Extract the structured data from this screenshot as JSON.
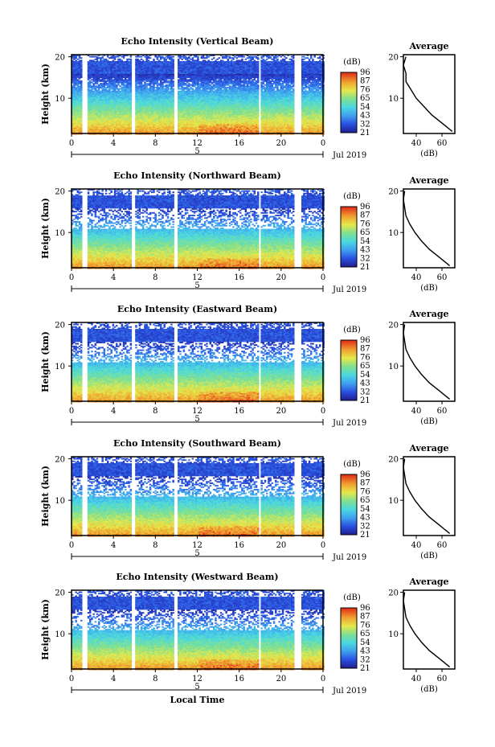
{
  "figure": {
    "x_axis_label": "Local Time",
    "colorbar_unit": "(dB)",
    "colorbar_ticks": [
      "96",
      "87",
      "76",
      "65",
      "54",
      "43",
      "32",
      "21"
    ],
    "side_title": "Average",
    "side_xlabel": "(dB)",
    "y_axis_label": "Height (km)",
    "date_label": "Jul 2019",
    "day_marker": "5"
  },
  "chart_data": [
    {
      "type": "heatmap",
      "title": "Echo Intensity (Vertical Beam)",
      "ylabel": "Height (km)",
      "xlabel": "",
      "x_ticks": [
        "0",
        "4",
        "8",
        "12",
        "16",
        "20",
        "0"
      ],
      "y_ticks": [
        "20",
        "10"
      ],
      "xlim": [
        0,
        24
      ],
      "ylim": [
        1.5,
        20.5
      ],
      "colorbar": {
        "unit": "(dB)",
        "ticks": [
          96,
          87,
          76,
          65,
          54,
          43,
          32,
          21
        ]
      },
      "gaps_hours": [
        [
          1.0,
          1.5
        ],
        [
          5.6,
          6.0
        ],
        [
          9.7,
          10.0
        ],
        [
          17.8,
          18.0
        ],
        [
          21.2,
          21.8
        ]
      ],
      "profile": {
        "title": "Average",
        "xlabel": "(dB)",
        "x_ticks": [
          "40",
          "60"
        ],
        "y_ticks": [
          "20",
          "10"
        ],
        "xlim": [
          30,
          70
        ],
        "height_km": [
          2,
          4,
          6,
          8,
          10,
          12,
          14,
          16,
          18,
          20
        ],
        "db": [
          68,
          60,
          52,
          46,
          40,
          36,
          32,
          32,
          30,
          32
        ]
      }
    },
    {
      "type": "heatmap",
      "title": "Echo Intensity (Northward Beam)",
      "ylabel": "Height (km)",
      "xlabel": "",
      "x_ticks": [
        "0",
        "4",
        "8",
        "12",
        "16",
        "20",
        "0"
      ],
      "y_ticks": [
        "20",
        "10"
      ],
      "xlim": [
        0,
        24
      ],
      "ylim": [
        1.5,
        20.5
      ],
      "colorbar": {
        "unit": "(dB)",
        "ticks": [
          96,
          87,
          76,
          65,
          54,
          43,
          32,
          21
        ]
      },
      "gaps_hours": [
        [
          1.0,
          1.5
        ],
        [
          5.6,
          6.0
        ],
        [
          9.7,
          10.0
        ],
        [
          17.8,
          18.0
        ],
        [
          21.2,
          21.8
        ]
      ],
      "profile": {
        "title": "Average",
        "xlabel": "(dB)",
        "x_ticks": [
          "40",
          "60"
        ],
        "y_ticks": [
          "20",
          "10"
        ],
        "xlim": [
          30,
          70
        ],
        "height_km": [
          2,
          4,
          6,
          8,
          10,
          12,
          14,
          16,
          18,
          20
        ],
        "db": [
          66,
          58,
          50,
          44,
          39,
          35,
          32,
          31,
          30,
          31
        ]
      }
    },
    {
      "type": "heatmap",
      "title": "Echo Intensity (Eastward Beam)",
      "ylabel": "Height (km)",
      "xlabel": "",
      "x_ticks": [
        "0",
        "4",
        "8",
        "12",
        "16",
        "20",
        "0"
      ],
      "y_ticks": [
        "20",
        "10"
      ],
      "xlim": [
        0,
        24
      ],
      "ylim": [
        1.5,
        20.5
      ],
      "colorbar": {
        "unit": "(dB)",
        "ticks": [
          96,
          87,
          76,
          65,
          54,
          43,
          32,
          21
        ]
      },
      "gaps_hours": [
        [
          1.0,
          1.5
        ],
        [
          5.6,
          6.0
        ],
        [
          9.7,
          10.0
        ],
        [
          17.8,
          18.0
        ],
        [
          21.2,
          21.8
        ]
      ],
      "profile": {
        "title": "Average",
        "xlabel": "(dB)",
        "x_ticks": [
          "40",
          "60"
        ],
        "y_ticks": [
          "20",
          "10"
        ],
        "xlim": [
          30,
          70
        ],
        "height_km": [
          2,
          4,
          6,
          8,
          10,
          12,
          14,
          16,
          18,
          20
        ],
        "db": [
          66,
          58,
          50,
          44,
          39,
          35,
          32,
          31,
          30,
          31
        ]
      }
    },
    {
      "type": "heatmap",
      "title": "Echo Intensity (Southward Beam)",
      "ylabel": "Height (km)",
      "xlabel": "",
      "x_ticks": [
        "0",
        "4",
        "8",
        "12",
        "16",
        "20",
        "0"
      ],
      "y_ticks": [
        "20",
        "10"
      ],
      "xlim": [
        0,
        24
      ],
      "ylim": [
        1.5,
        20.5
      ],
      "colorbar": {
        "unit": "(dB)",
        "ticks": [
          96,
          87,
          76,
          65,
          54,
          43,
          32,
          21
        ]
      },
      "gaps_hours": [
        [
          1.0,
          1.5
        ],
        [
          5.6,
          6.0
        ],
        [
          9.7,
          10.0
        ],
        [
          17.8,
          18.0
        ],
        [
          21.2,
          21.8
        ]
      ],
      "profile": {
        "title": "Average",
        "xlabel": "(dB)",
        "x_ticks": [
          "40",
          "60"
        ],
        "y_ticks": [
          "20",
          "10"
        ],
        "xlim": [
          30,
          70
        ],
        "height_km": [
          2,
          4,
          6,
          8,
          10,
          12,
          14,
          16,
          18,
          20
        ],
        "db": [
          66,
          58,
          50,
          44,
          39,
          35,
          32,
          31,
          30,
          31
        ]
      }
    },
    {
      "type": "heatmap",
      "title": "Echo Intensity (Westward Beam)",
      "ylabel": "Height (km)",
      "xlabel": "Local Time",
      "x_ticks": [
        "0",
        "4",
        "8",
        "12",
        "16",
        "20",
        "0"
      ],
      "y_ticks": [
        "20",
        "10"
      ],
      "xlim": [
        0,
        24
      ],
      "ylim": [
        1.5,
        20.5
      ],
      "colorbar": {
        "unit": "(dB)",
        "ticks": [
          96,
          87,
          76,
          65,
          54,
          43,
          32,
          21
        ]
      },
      "gaps_hours": [
        [
          1.0,
          1.5
        ],
        [
          5.6,
          6.0
        ],
        [
          9.7,
          10.0
        ],
        [
          17.8,
          18.0
        ],
        [
          21.2,
          21.8
        ]
      ],
      "profile": {
        "title": "Average",
        "xlabel": "(dB)",
        "x_ticks": [
          "40",
          "60"
        ],
        "y_ticks": [
          "20",
          "10"
        ],
        "xlim": [
          30,
          70
        ],
        "height_km": [
          2,
          4,
          6,
          8,
          10,
          12,
          14,
          16,
          18,
          20
        ],
        "db": [
          66,
          58,
          50,
          44,
          39,
          35,
          32,
          31,
          30,
          31
        ]
      }
    }
  ]
}
